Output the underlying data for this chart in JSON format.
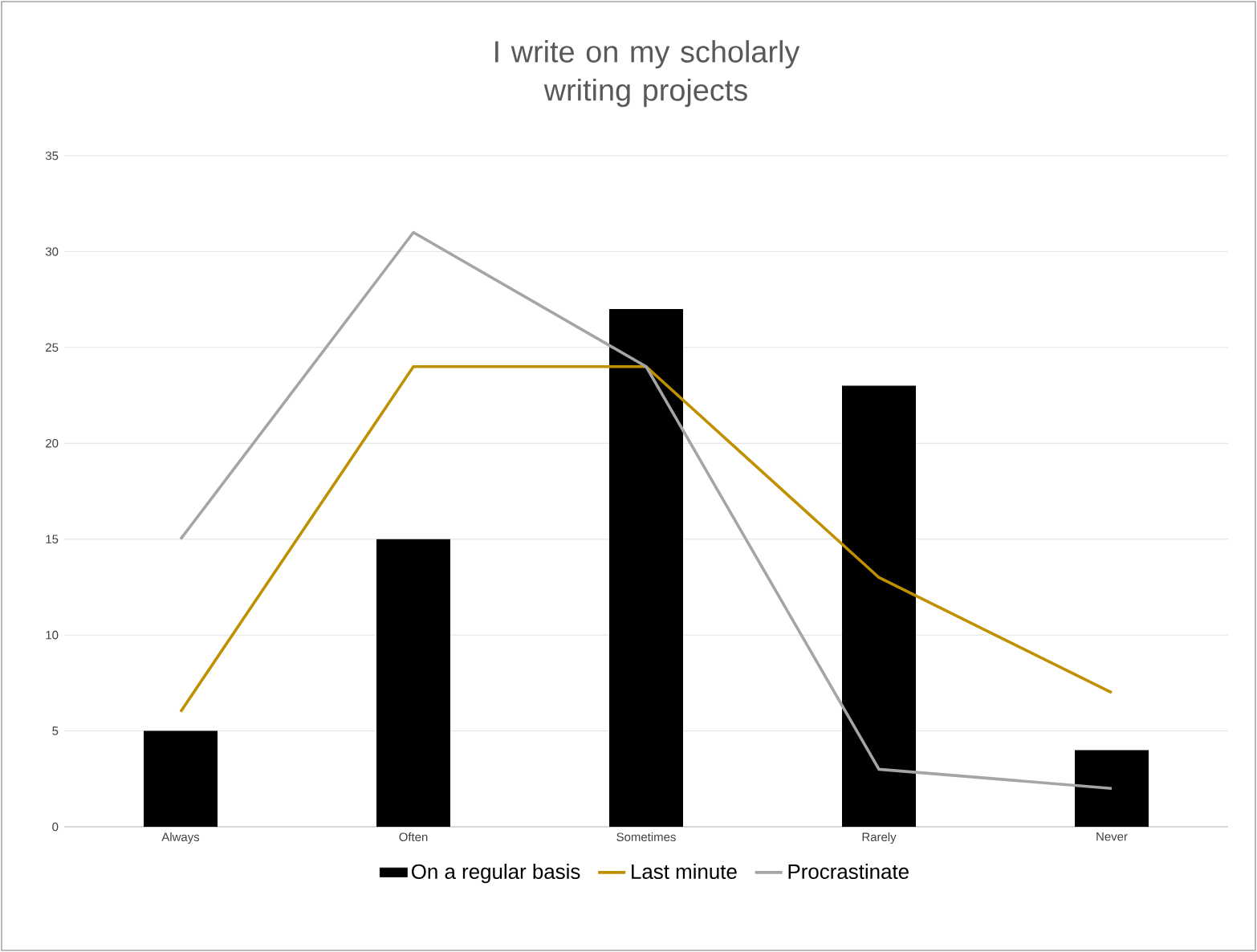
{
  "chart_data": {
    "type": "bar",
    "title": "I write on my scholarly writing projects",
    "categories": [
      "Always",
      "Often",
      "Sometimes",
      "Rarely",
      "Never"
    ],
    "series": [
      {
        "name": "On a regular basis",
        "color": "#000000",
        "values": [
          5,
          15,
          27,
          23,
          4
        ]
      },
      {
        "name": "Last minute",
        "type": "line",
        "color": "#bf9000",
        "values": [
          6,
          24,
          24,
          13,
          7
        ]
      },
      {
        "name": "Procrastinate",
        "type": "line",
        "color": "#a5a5a5",
        "values": [
          15,
          31,
          24,
          3,
          2
        ]
      }
    ],
    "ylim": [
      0,
      35
    ],
    "yticks": [
      0,
      5,
      10,
      15,
      20,
      25,
      30,
      35
    ],
    "grid": "y",
    "legend": "bottom",
    "marker": "none",
    "line_style": "solid"
  }
}
